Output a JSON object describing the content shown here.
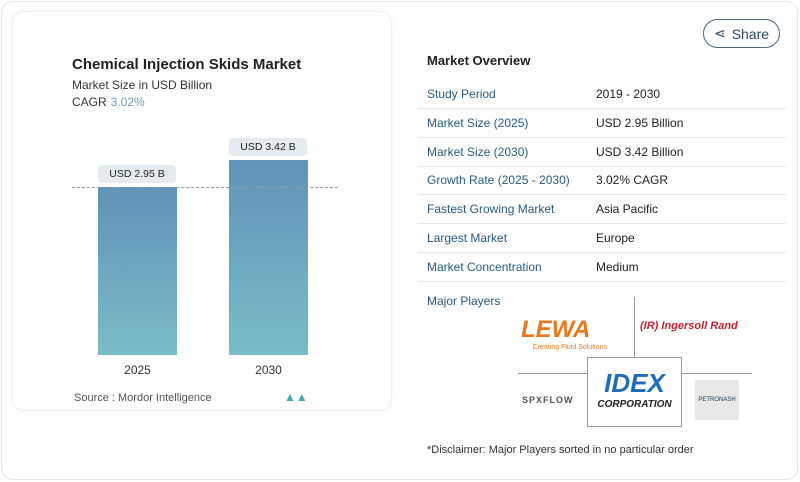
{
  "chart_card": {
    "title": "Chemical Injection Skids Market",
    "subtitle": "Market Size in USD Billion",
    "cagr_label": "CAGR",
    "cagr_value": "3.02%",
    "source": "Source :  Mordor Intelligence"
  },
  "chart_data": {
    "type": "bar",
    "categories": [
      "2025",
      "2030"
    ],
    "values": [
      2.95,
      3.42
    ],
    "data_labels": [
      "USD 2.95 B",
      "USD 3.42 B"
    ],
    "ylim": [
      0,
      3.42
    ],
    "colors": {
      "bar_top": "#5f93b8",
      "bar_bottom": "#7bbcc8"
    }
  },
  "share": {
    "label": "Share",
    "icon": "share-icon"
  },
  "overview": {
    "title": "Market Overview",
    "rows": [
      {
        "label": "Study Period",
        "value": "2019 - 2030"
      },
      {
        "label": "Market Size (2025)",
        "value": "USD 2.95 Billion"
      },
      {
        "label": "Market Size (2030)",
        "value": "USD 3.42 Billion"
      },
      {
        "label": "Growth Rate (2025 - 2030)",
        "value": "3.02% CAGR"
      },
      {
        "label": "Fastest Growing Market",
        "value": "Asia Pacific"
      },
      {
        "label": "Largest Market",
        "value": "Europe"
      },
      {
        "label": "Market Concentration",
        "value": "Medium"
      }
    ],
    "players_label": "Major Players",
    "players": [
      "LEWA",
      "Ingersoll Rand",
      "SPX FLOW",
      "IDEX Corporation",
      "Petronash"
    ],
    "disclaimer": "*Disclaimer: Major Players sorted in no particular order"
  }
}
